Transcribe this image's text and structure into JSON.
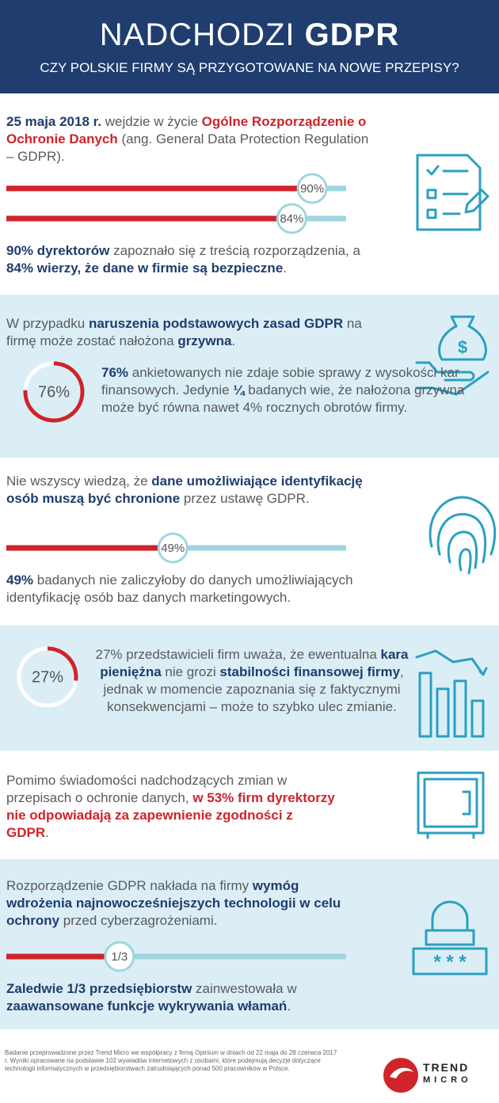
{
  "header": {
    "title_light": "NADCHODZI",
    "title_bold": "GDPR",
    "subtitle": "CZY POLSKIE FIRMY SĄ PRZYGOTOWANE NA NOWE PRZEPISY?"
  },
  "sections": [
    {
      "intro": [
        {
          "text": "25 maja 2018 r.",
          "style": "bold"
        },
        {
          "text": " wejdzie w życie ",
          "style": "regular"
        },
        {
          "text": "Ogólne Rozporządzenie o Ochronie Danych",
          "style": "red"
        },
        {
          "text": " (ang. General Data Protection Regulation – GDPR).",
          "style": "regular"
        }
      ],
      "bars": [
        {
          "value": 90,
          "label": "90%"
        },
        {
          "value": 84,
          "label": "84%"
        }
      ],
      "summary": [
        {
          "text": "90% dyrektorów",
          "style": "bold"
        },
        {
          "text": " zapoznało się z treścią rozporządzenia, a ",
          "style": "regular"
        },
        {
          "text": "84% wierzy, że dane w firmie są bezpieczne",
          "style": "bold"
        },
        {
          "text": ".",
          "style": "regular"
        }
      ]
    },
    {
      "intro": [
        {
          "text": "W przypadku ",
          "style": "regular"
        },
        {
          "text": "naruszenia podstawowych zasad GDPR",
          "style": "bold"
        },
        {
          "text": " na firmę może zostać nałożona ",
          "style": "regular"
        },
        {
          "text": "grzywna",
          "style": "bold"
        },
        {
          "text": ".",
          "style": "regular"
        }
      ],
      "ring": {
        "value": 76,
        "label": "76%"
      },
      "detail": [
        {
          "text": "76%",
          "style": "bold"
        },
        {
          "text": " ankietowanych nie zdaje sobie sprawy z wysokości kar finansowych. Jedynie ",
          "style": "regular"
        },
        {
          "text": "¼",
          "style": "bold"
        },
        {
          "text": " badanych wie, że nałożona grzywna może być równa nawet 4% rocznych obrotów firmy.",
          "style": "regular"
        }
      ]
    },
    {
      "intro": [
        {
          "text": "Nie wszyscy wiedzą, że ",
          "style": "regular"
        },
        {
          "text": "dane umożliwiające identyfikację osób muszą być chronione",
          "style": "bold"
        },
        {
          "text": " przez ustawę GDPR.",
          "style": "regular"
        }
      ],
      "bars": [
        {
          "value": 49,
          "label": "49%"
        }
      ],
      "summary": [
        {
          "text": "49%",
          "style": "bold"
        },
        {
          "text": " badanych nie zaliczyłoby do danych umożliwiających identyfikację osób baz danych marketingowych.",
          "style": "regular"
        }
      ]
    },
    {
      "ring": {
        "value": 27,
        "label": "27%"
      },
      "detail": [
        {
          "text": "27% przedstawicieli firm uważa, że ewentualna ",
          "style": "regular"
        },
        {
          "text": "kara pieniężna",
          "style": "bold"
        },
        {
          "text": " nie grozi ",
          "style": "regular"
        },
        {
          "text": "stabilności finansowej firmy",
          "style": "bold"
        },
        {
          "text": ",  jednak w momencie zapoznania się z faktycznymi konsekwencjami – może to szybko ulec zmianie.",
          "style": "regular"
        }
      ]
    },
    {
      "intro": [
        {
          "text": "Pomimo świadomości nadchodzących zmian w przepisach o ochronie danych, ",
          "style": "regular"
        },
        {
          "text": "w 53% firm dyrektorzy nie odpowiadają za zapewnienie zgodności z GDPR",
          "style": "red"
        },
        {
          "text": ".",
          "style": "regular"
        }
      ]
    },
    {
      "intro": [
        {
          "text": "Rozporządzenie GDPR nakłada na firmy ",
          "style": "regular"
        },
        {
          "text": "wymóg wdrożenia najnowocześniejszych technologii w celu ochrony",
          "style": "bold"
        },
        {
          "text": " przed cyberzagrożeniami.",
          "style": "regular"
        }
      ],
      "bars": [
        {
          "value": 33.3,
          "label": "1/3"
        }
      ],
      "summary": [
        {
          "text": "Zaledwie 1/3 przedsiębiorstw",
          "style": "bold"
        },
        {
          "text": " zainwestowała w ",
          "style": "regular"
        },
        {
          "text": "zaawansowane funkcje wykrywania włamań",
          "style": "bold"
        },
        {
          "text": ".",
          "style": "regular"
        }
      ]
    }
  ],
  "footer": {
    "note": "Badanie przeprowadzone przez Trend Micro we współpracy z firmą Opinium w dniach od 22 maja do 28 czerwca 2017 r. Wyniki opracowane na podstawie 102 wywiadów internetowych z osobami, które podejmują decyzje dotyczące technologii informatycznych w przedsiębiorstwach zatrudniających ponad 500 pracowników w Polsce.",
    "logo_top": "TREND",
    "logo_bottom": "MICRO"
  }
}
